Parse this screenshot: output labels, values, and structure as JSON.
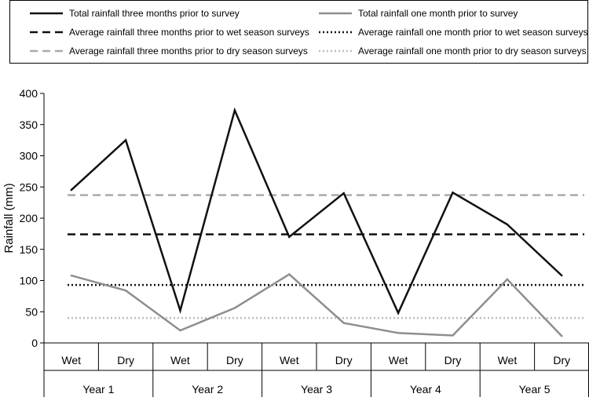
{
  "chart_data": {
    "type": "line",
    "ylabel": "Rainfall (mm)",
    "ylim": [
      0,
      400
    ],
    "yticks": [
      0,
      50,
      100,
      150,
      200,
      250,
      300,
      350,
      400
    ],
    "grid": false,
    "legend_position": "top",
    "categories": [
      "Wet",
      "Dry",
      "Wet",
      "Dry",
      "Wet",
      "Dry",
      "Wet",
      "Dry",
      "Wet",
      "Dry"
    ],
    "groups": [
      "Year 1",
      "Year 2",
      "Year 3",
      "Year 4",
      "Year 5"
    ],
    "series": [
      {
        "name": "Total rainfall three months prior to survey",
        "kind": "line",
        "color": "#111111",
        "dash": "solid",
        "values": [
          245,
          325,
          52,
          373,
          170,
          240,
          48,
          241,
          190,
          108
        ]
      },
      {
        "name": "Total rainfall one month prior to survey",
        "kind": "line",
        "color": "#8e8e8e",
        "dash": "solid",
        "values": [
          108,
          84,
          20,
          56,
          110,
          32,
          16,
          12,
          102,
          11
        ]
      },
      {
        "name": "Average rainfall three months prior to wet season surveys",
        "kind": "hline",
        "color": "#111111",
        "dash": "dashed",
        "value": 174
      },
      {
        "name": "Average rainfall one month prior to wet season surveys",
        "kind": "hline",
        "color": "#111111",
        "dash": "dotted",
        "value": 93
      },
      {
        "name": "Average rainfall three months prior to dry season surveys",
        "kind": "hline",
        "color": "#aaaaaa",
        "dash": "dashed",
        "value": 237
      },
      {
        "name": "Average rainfall one month prior to dry season surveys",
        "kind": "hline",
        "color": "#bcbcbc",
        "dash": "dotted",
        "value": 40
      }
    ]
  }
}
